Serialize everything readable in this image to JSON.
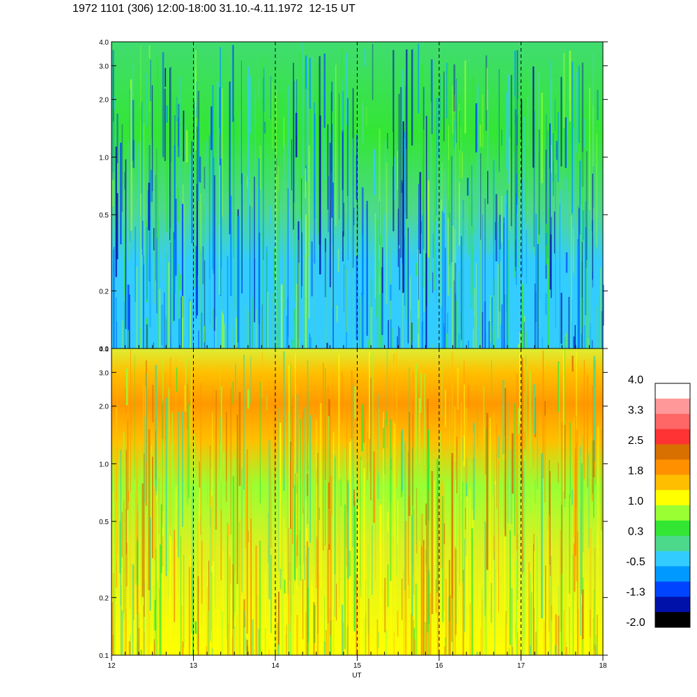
{
  "title": "1972 1101 (306) 12:00-18:00 31.10.-4.11.1972  12-15 UT",
  "chart_data": [
    {
      "type": "heatmap",
      "panel": "top",
      "title": "",
      "xlabel": "",
      "ylabel": "",
      "xlim": [
        12,
        18
      ],
      "ylim": [
        0.1,
        4.0
      ],
      "yscale": "log",
      "ytick_labels": [
        "0.1",
        "0.2",
        "0.5",
        "1.0",
        "2.0",
        "3.0",
        "4.0"
      ],
      "ytick_values": [
        0.1,
        0.2,
        0.5,
        1.0,
        2.0,
        3.0,
        4.0
      ],
      "vertical_dashed_lines_at": [
        13,
        14,
        15,
        16,
        17
      ],
      "dominant_levels": {
        "low_freq": -0.5,
        "mid_freq": 0.0,
        "high_freq": 0.3
      }
    },
    {
      "type": "heatmap",
      "panel": "bottom",
      "title": "",
      "xlabel": "UT",
      "ylabel": "",
      "xlim": [
        12,
        18
      ],
      "ylim": [
        0.1,
        4.0
      ],
      "yscale": "log",
      "xtick_labels": [
        "12",
        "13",
        "14",
        "15",
        "16",
        "17",
        "18"
      ],
      "xtick_values": [
        12,
        13,
        14,
        15,
        16,
        17,
        18
      ],
      "ytick_labels": [
        "0.1",
        "0.2",
        "0.5",
        "1.0",
        "2.0",
        "3.0",
        "4.0"
      ],
      "ytick_values": [
        0.1,
        0.2,
        0.5,
        1.0,
        2.0,
        3.0,
        4.0
      ],
      "vertical_dashed_lines_at": [
        13,
        14,
        15,
        16,
        17
      ],
      "dominant_levels": {
        "low_freq": 1.0,
        "mid_freq": 0.6,
        "high_freq": 1.8
      }
    }
  ],
  "colorbar": {
    "labels": [
      "4.0",
      "3.3",
      "2.5",
      "1.8",
      "1.0",
      "0.3",
      "-0.5",
      "-1.3",
      "-2.0"
    ],
    "colors": [
      "#ffffff",
      "#ff9999",
      "#ff6666",
      "#ff3333",
      "#d87000",
      "#ff9000",
      "#ffbf00",
      "#ffff00",
      "#99ff33",
      "#33e633",
      "#4dd98c",
      "#33ccff",
      "#0099ff",
      "#0044ff",
      "#0011aa",
      "#000000"
    ]
  }
}
